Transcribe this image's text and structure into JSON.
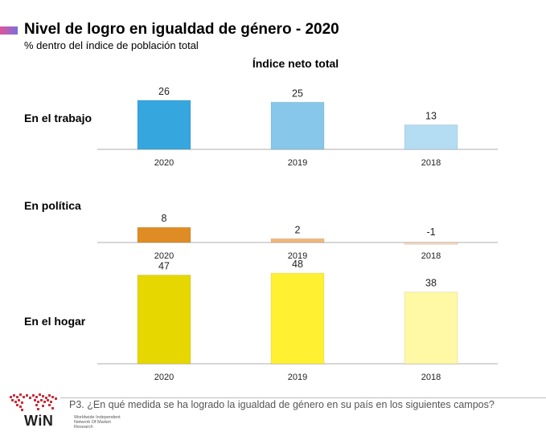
{
  "header": {
    "title": "Nivel de logro en igualdad de género - 2020",
    "subtitle": "% dentro del índice de población total",
    "chart_heading": "Índice neto total"
  },
  "footer": {
    "question": "P3. ¿En qué medida se ha logrado la igualdad de género en su país en los siguientes campos?",
    "logo_text": "WiN",
    "logo_tagline": "Worldwide Independent Network Of Market Research"
  },
  "chart_data": [
    {
      "type": "bar",
      "title": "En el trabajo",
      "categories": [
        "2020",
        "2019",
        "2018"
      ],
      "values": [
        26,
        25,
        13
      ],
      "colors": [
        "#36a6df",
        "#86c7ea",
        "#b4dcf3"
      ]
    },
    {
      "type": "bar",
      "title": "En política",
      "categories": [
        "2020",
        "2019",
        "2018"
      ],
      "values": [
        8,
        2,
        -1
      ],
      "colors": [
        "#e08c24",
        "#f0b679",
        "#f6d7bb"
      ]
    },
    {
      "type": "bar",
      "title": "En el hogar",
      "categories": [
        "2020",
        "2019",
        "2018"
      ],
      "values": [
        47,
        48,
        38
      ],
      "colors": [
        "#e6d700",
        "#fff032",
        "#fff9a5"
      ]
    }
  ]
}
